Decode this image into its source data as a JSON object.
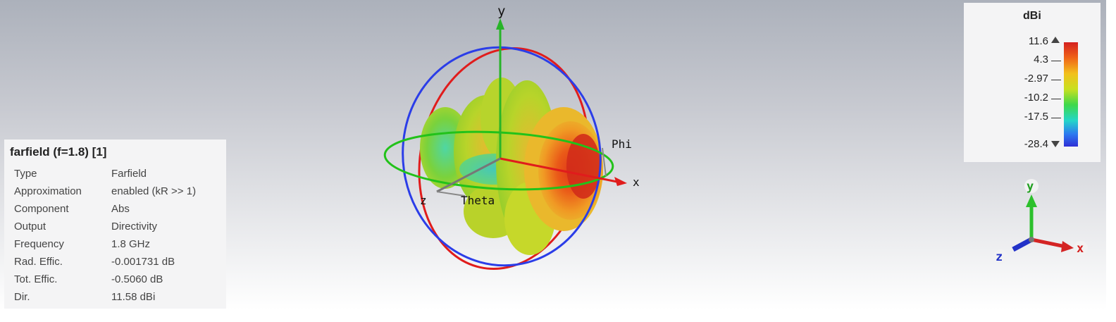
{
  "scene": {
    "axes": {
      "x": "x",
      "y": "y",
      "z": "z"
    },
    "angle_labels": {
      "phi": "Phi",
      "theta": "Theta"
    }
  },
  "info": {
    "title": "farfield (f=1.8) [1]",
    "rows": [
      {
        "key": "Type",
        "value": "Farfield"
      },
      {
        "key": "Approximation",
        "value": "enabled (kR >> 1)"
      },
      {
        "key": "Component",
        "value": "Abs"
      },
      {
        "key": "Output",
        "value": "Directivity"
      },
      {
        "key": "Frequency",
        "value": "1.8 GHz"
      },
      {
        "key": "Rad. Effic.",
        "value": "-0.001731 dB"
      },
      {
        "key": "Tot. Effic.",
        "value": "-0.5060 dB"
      },
      {
        "key": "Dir.",
        "value": "11.58 dBi"
      }
    ]
  },
  "legend": {
    "unit": "dBi",
    "ticks": [
      "11.6",
      "4.3",
      "-2.97",
      "-10.2",
      "-17.5",
      "-28.4"
    ],
    "colors": {
      "max": "#d42020",
      "min": "#2f2fd6"
    }
  },
  "axis_gizmo": {
    "x": "x",
    "y": "y",
    "z": "z"
  }
}
